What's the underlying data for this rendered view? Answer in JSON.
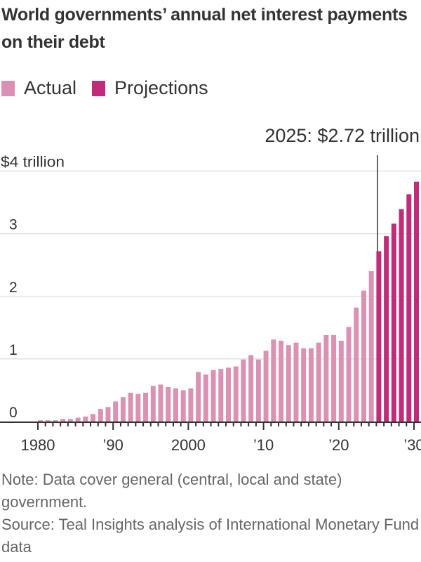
{
  "title": "World governments’ annual net interest payments on their debt",
  "legend": [
    {
      "label": "Actual",
      "color": "#db91b3"
    },
    {
      "label": "Projections",
      "color": "#c02c7a"
    }
  ],
  "notes": {
    "note": "Note: Data cover general (central, local and state) government.",
    "source": "Source: Teal Insights analysis of International Monetary Fund data"
  },
  "chart_data": {
    "type": "bar",
    "title": "World governments’ annual net interest payments on their debt",
    "xlabel": "",
    "ylabel": "$ trillion",
    "ylim": [
      0,
      4
    ],
    "grid": true,
    "legend_position": "top-left",
    "y_ticks": [
      {
        "value": 0,
        "label": "0"
      },
      {
        "value": 1,
        "label": "1"
      },
      {
        "value": 2,
        "label": "2"
      },
      {
        "value": 3,
        "label": "3"
      },
      {
        "value": 4,
        "label": "$4 trillion"
      }
    ],
    "x_ticks": [
      {
        "value": 1980,
        "label": "1980"
      },
      {
        "value": 1990,
        "label": "’90"
      },
      {
        "value": 2000,
        "label": "2000"
      },
      {
        "value": 2010,
        "label": "’10"
      },
      {
        "value": 2020,
        "label": "’20"
      },
      {
        "value": 2030,
        "label": "’30"
      }
    ],
    "annotation": {
      "year": 2025,
      "text": "2025: $2.72 trillion"
    },
    "series": [
      {
        "name": "Actual",
        "color": "#db91b3",
        "x": [
          1980,
          1981,
          1982,
          1983,
          1984,
          1985,
          1986,
          1987,
          1988,
          1989,
          1990,
          1991,
          1992,
          1993,
          1994,
          1995,
          1996,
          1997,
          1998,
          1999,
          2000,
          2001,
          2002,
          2003,
          2004,
          2005,
          2006,
          2007,
          2008,
          2009,
          2010,
          2011,
          2012,
          2013,
          2014,
          2015,
          2016,
          2017,
          2018,
          2019,
          2020,
          2021,
          2022,
          2023,
          2024
        ],
        "values": [
          0.02,
          0.02,
          0.02,
          0.04,
          0.04,
          0.06,
          0.08,
          0.12,
          0.2,
          0.23,
          0.32,
          0.39,
          0.46,
          0.44,
          0.46,
          0.57,
          0.59,
          0.55,
          0.53,
          0.5,
          0.53,
          0.79,
          0.75,
          0.82,
          0.84,
          0.86,
          0.88,
          0.99,
          1.06,
          0.99,
          1.13,
          1.31,
          1.29,
          1.22,
          1.26,
          1.17,
          1.17,
          1.26,
          1.38,
          1.38,
          1.29,
          1.51,
          1.82,
          2.09,
          2.4
        ]
      },
      {
        "name": "Projections",
        "color": "#c02c7a",
        "x": [
          2025,
          2026,
          2027,
          2028,
          2029,
          2030
        ],
        "values": [
          2.72,
          2.96,
          3.16,
          3.39,
          3.63,
          3.83
        ]
      }
    ]
  }
}
